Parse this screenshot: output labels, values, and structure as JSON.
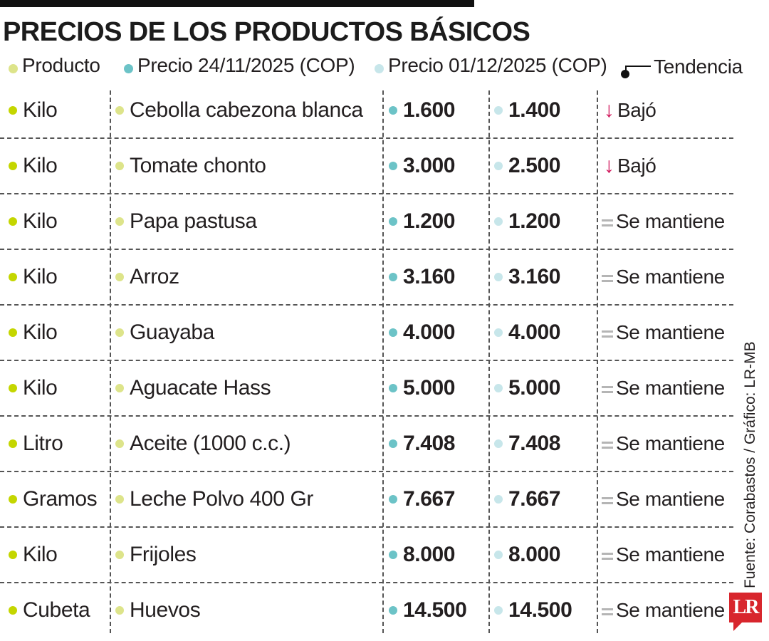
{
  "title": "PRECIOS DE LOS PRODUCTOS BÁSICOS",
  "colors": {
    "dot_producto": "#dde48a",
    "dot_precio_1": "#6cc3c7",
    "dot_precio_2": "#c7e6ea",
    "dot_unit": "#c4d600",
    "arrow_down": "#d0145a",
    "equal": "#b5b5b5",
    "logo": "#d8262d"
  },
  "legend": {
    "producto": "Producto",
    "precio_1": "Precio 24/11/2025 (COP)",
    "precio_2": "Precio 01/12/2025 (COP)",
    "tendencia": "Tendencia"
  },
  "rows": [
    {
      "unit": "Kilo",
      "product": "Cebolla cabezona blanca",
      "price_1": "1.600",
      "price_2": "1.400",
      "trend": "Bajó",
      "trend_icon": "arrow-down-icon"
    },
    {
      "unit": "Kilo",
      "product": "Tomate chonto",
      "price_1": "3.000",
      "price_2": "2.500",
      "trend": "Bajó",
      "trend_icon": "arrow-down-icon"
    },
    {
      "unit": "Kilo",
      "product": "Papa pastusa",
      "price_1": "1.200",
      "price_2": "1.200",
      "trend": "Se mantiene",
      "trend_icon": "equal-icon"
    },
    {
      "unit": "Kilo",
      "product": "Arroz",
      "price_1": "3.160",
      "price_2": "3.160",
      "trend": "Se mantiene",
      "trend_icon": "equal-icon"
    },
    {
      "unit": "Kilo",
      "product": "Guayaba",
      "price_1": "4.000",
      "price_2": "4.000",
      "trend": "Se mantiene",
      "trend_icon": "equal-icon"
    },
    {
      "unit": "Kilo",
      "product": "Aguacate Hass",
      "price_1": "5.000",
      "price_2": "5.000",
      "trend": "Se mantiene",
      "trend_icon": "equal-icon"
    },
    {
      "unit": "Litro",
      "product": "Aceite (1000 c.c.)",
      "price_1": "7.408",
      "price_2": "7.408",
      "trend": "Se mantiene",
      "trend_icon": "equal-icon"
    },
    {
      "unit": "Gramos",
      "product": "Leche Polvo 400 Gr",
      "price_1": "7.667",
      "price_2": "7.667",
      "trend": "Se mantiene",
      "trend_icon": "equal-icon"
    },
    {
      "unit": "Kilo",
      "product": "Frijoles",
      "price_1": "8.000",
      "price_2": "8.000",
      "trend": "Se mantiene",
      "trend_icon": "equal-icon"
    },
    {
      "unit": "Cubeta",
      "product": "Huevos",
      "price_1": "14.500",
      "price_2": "14.500",
      "trend": "Se mantiene",
      "trend_icon": "equal-icon"
    }
  ],
  "source": "Fuente: Corabastos / Gráfico: LR-MB",
  "logo_text": "LR"
}
